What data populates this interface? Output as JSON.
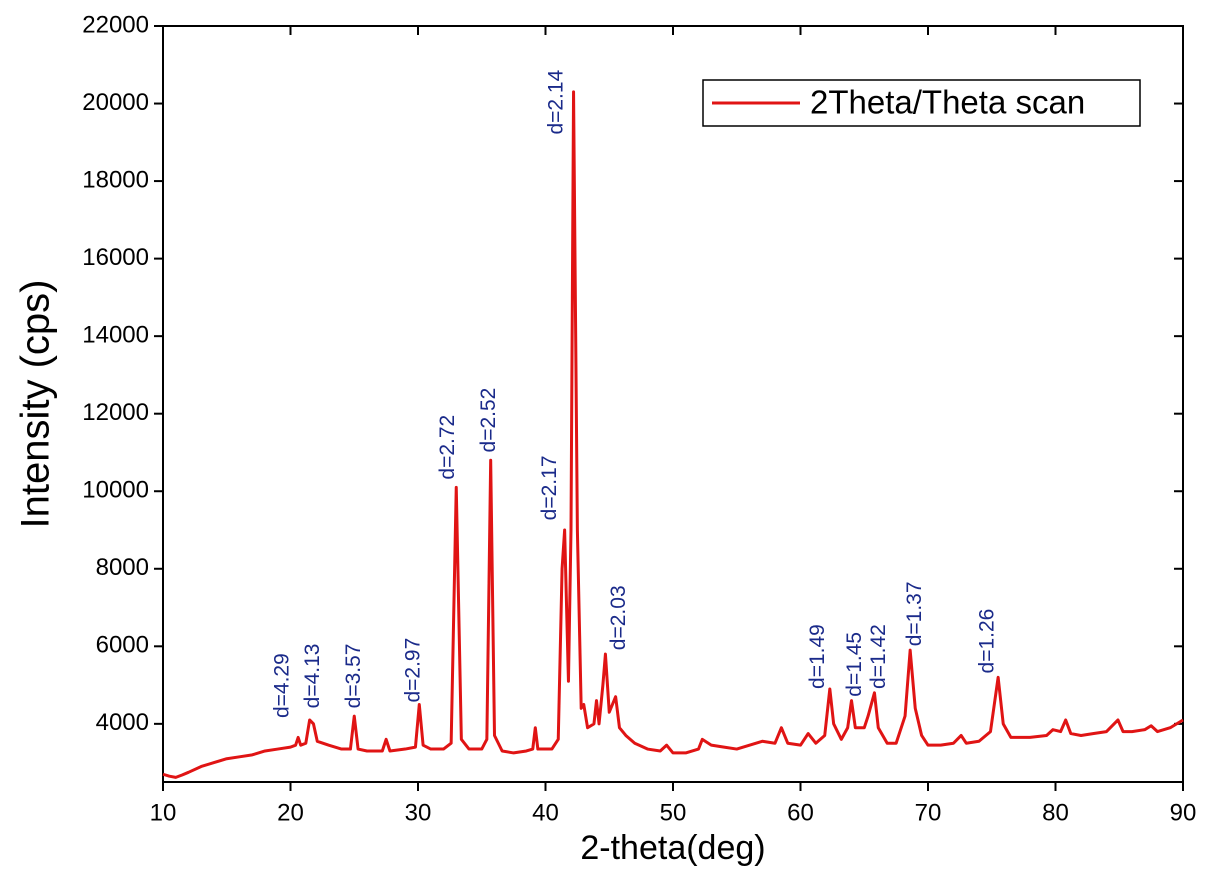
{
  "chart_data": {
    "type": "line",
    "xlabel": "2-theta(deg)",
    "ylabel": "Intensity (cps)",
    "xlim": [
      10,
      90
    ],
    "xticks": [
      10,
      20,
      30,
      40,
      50,
      60,
      70,
      80,
      90
    ],
    "ylim": [
      2500,
      22000
    ],
    "yticks": [
      4000,
      6000,
      8000,
      10000,
      12000,
      14000,
      16000,
      18000,
      20000,
      22000
    ],
    "legend": "upper right",
    "x": [
      10,
      10.5,
      11,
      11.5,
      12,
      13,
      14,
      15,
      16,
      17,
      18,
      19,
      20,
      20.4,
      20.6,
      20.8,
      21.2,
      21.5,
      21.8,
      22.1,
      23,
      24,
      24.7,
      25,
      25.3,
      26,
      27.2,
      27.5,
      27.8,
      29,
      29.8,
      30.1,
      30.4,
      31,
      32,
      32.6,
      33,
      33.4,
      34,
      35,
      35.4,
      35.7,
      36,
      36.6,
      37.5,
      38.5,
      39,
      39.2,
      39.4,
      40.5,
      41,
      41.3,
      41.5,
      41.8,
      42,
      42.2,
      42.5,
      42.8,
      43,
      43.3,
      43.8,
      44,
      44.2,
      44.5,
      44.7,
      45,
      45.5,
      45.8,
      46.3,
      47,
      48,
      49,
      49.5,
      50,
      51,
      52,
      52.3,
      53,
      54,
      55,
      56,
      57,
      58,
      58.5,
      59,
      60,
      60.6,
      61.2,
      61.9,
      62.3,
      62.6,
      63.2,
      63.7,
      64,
      64.3,
      65,
      65.3,
      65.8,
      66.1,
      66.8,
      67.5,
      68.2,
      68.6,
      69,
      69.5,
      70,
      71,
      72,
      72.6,
      73,
      74,
      74.9,
      75.5,
      75.9,
      76.5,
      78,
      79.3,
      79.8,
      80.4,
      80.8,
      81.2,
      82,
      83,
      84,
      84.9,
      85.3,
      86,
      87,
      87.5,
      88,
      89,
      89.5,
      90
    ],
    "series": [
      {
        "name": "2Theta/Theta scan",
        "color": "#e01414",
        "values": [
          2700,
          2650,
          2620,
          2680,
          2750,
          2900,
          3000,
          3100,
          3150,
          3200,
          3300,
          3350,
          3400,
          3450,
          3650,
          3450,
          3500,
          4100,
          4000,
          3550,
          3450,
          3350,
          3350,
          4200,
          3350,
          3300,
          3300,
          3600,
          3300,
          3350,
          3400,
          4500,
          3450,
          3350,
          3350,
          3500,
          10100,
          3600,
          3350,
          3350,
          3600,
          10800,
          3700,
          3300,
          3250,
          3300,
          3350,
          3900,
          3350,
          3350,
          3600,
          8000,
          9000,
          5100,
          9000,
          20300,
          9000,
          4400,
          4500,
          3900,
          4000,
          4600,
          4000,
          5000,
          5800,
          4300,
          4700,
          3900,
          3700,
          3500,
          3350,
          3300,
          3450,
          3250,
          3250,
          3350,
          3600,
          3450,
          3400,
          3350,
          3450,
          3550,
          3500,
          3900,
          3500,
          3450,
          3750,
          3500,
          3700,
          4900,
          4000,
          3600,
          3900,
          4600,
          3900,
          3900,
          4200,
          4800,
          3900,
          3500,
          3500,
          4200,
          5900,
          4400,
          3700,
          3450,
          3450,
          3500,
          3700,
          3500,
          3550,
          3800,
          5200,
          4000,
          3650,
          3650,
          3700,
          3850,
          3800,
          4100,
          3750,
          3700,
          3750,
          3800,
          4100,
          3800,
          3800,
          3850,
          3950,
          3800,
          3900,
          4000,
          4100
        ]
      }
    ],
    "annotations": [
      {
        "text": "d=4.29",
        "x": 19.4,
        "y": 4150
      },
      {
        "text": "d=4.13",
        "x": 21.8,
        "y": 4400
      },
      {
        "text": "d=3.57",
        "x": 25.0,
        "y": 4400
      },
      {
        "text": "d=2.97",
        "x": 29.7,
        "y": 4550
      },
      {
        "text": "d=2.72",
        "x": 32.4,
        "y": 10300
      },
      {
        "text": "d=2.52",
        "x": 35.6,
        "y": 11000
      },
      {
        "text": "d=2.17",
        "x": 40.4,
        "y": 9250
      },
      {
        "text": "d=2.14",
        "x": 40.9,
        "y": 19200
      },
      {
        "text": "d=2.03",
        "x": 45.8,
        "y": 5900
      },
      {
        "text": "d=1.49",
        "x": 61.4,
        "y": 4900
      },
      {
        "text": "d=1.45",
        "x": 64.3,
        "y": 4700
      },
      {
        "text": "d=1.42",
        "x": 66.2,
        "y": 4900
      },
      {
        "text": "d=1.37",
        "x": 69.0,
        "y": 6000
      },
      {
        "text": "d=1.26",
        "x": 74.7,
        "y": 5300
      }
    ]
  }
}
